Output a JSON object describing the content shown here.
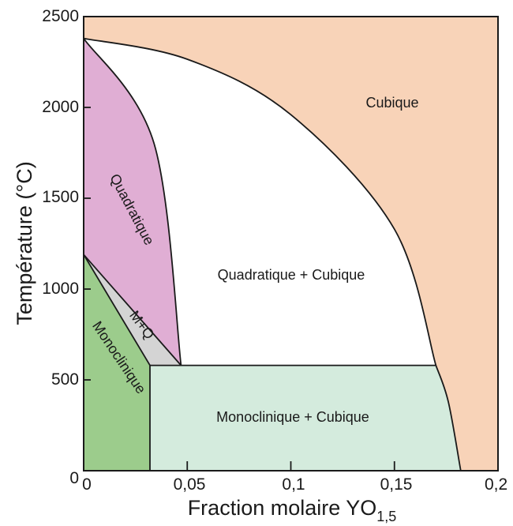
{
  "x_axis": {
    "title_main": "Fraction molaire YO",
    "title_sub": "1,5",
    "tick_labels": [
      "0",
      "0,05",
      "0,1",
      "0,15",
      "0,2"
    ]
  },
  "y_axis": {
    "title": "Température (°C)",
    "tick_labels": [
      "0",
      "500",
      "1000",
      "1500",
      "2000",
      "2500"
    ]
  },
  "regions": {
    "cubic": "Cubique",
    "tetragonal": "Quadratique",
    "tetragonal_cubic": "Quadratique + Cubique",
    "monoclinic": "Monoclinique",
    "monoclinic_tetragonal": "M+Q",
    "monoclinic_cubic": "Monoclinique + Cubique"
  },
  "colors": {
    "cubic": "#f8d3b8",
    "tetragonal": "#e0aed4",
    "monoclinic": "#9ccc8c",
    "monoclinic_tetragonal": "#d4d4d4",
    "monoclinic_cubic": "#d4ebdd",
    "tetragonal_cubic": "#ffffff",
    "line": "#1a1a1a"
  },
  "chart_data": {
    "type": "phase-diagram",
    "xlim": [
      0,
      0.2
    ],
    "ylim": [
      0,
      2500
    ],
    "x_ticks": [
      0,
      0.05,
      0.1,
      0.15,
      0.2
    ],
    "y_ticks": [
      0,
      500,
      1000,
      1500,
      2000,
      2500
    ],
    "eutectoid": {
      "x_monoclinic_limit": 0.032,
      "x_tetragonal_limit": 0.047,
      "x_cubic_limit": 0.17,
      "temperature": 580
    },
    "phase_boundaries": {
      "cubic_solvus": [
        [
          0,
          2380
        ],
        [
          0.05,
          2265
        ],
        [
          0.1,
          1960
        ],
        [
          0.15,
          1330
        ],
        [
          0.17,
          580
        ]
      ],
      "cubic_solvus_low": [
        [
          0.17,
          580
        ],
        [
          0.176,
          380
        ],
        [
          0.182,
          0
        ]
      ],
      "tetragonal_limit_upper": [
        [
          0,
          2380
        ],
        [
          0.034,
          1800
        ],
        [
          0.047,
          580
        ]
      ],
      "monoclinic_to_tetragonal": [
        [
          0,
          1190
        ],
        [
          0.047,
          580
        ]
      ],
      "tetragonal_to_monoclinic_tetragonal": [
        [
          0,
          1190
        ],
        [
          0.032,
          580
        ]
      ],
      "monoclinic_solvus": [
        [
          0.032,
          580
        ],
        [
          0.032,
          0
        ]
      ]
    }
  }
}
